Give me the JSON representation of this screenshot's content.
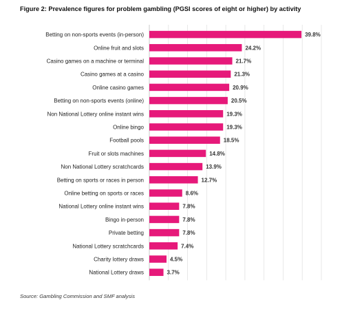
{
  "chart_data": {
    "type": "bar",
    "orientation": "horizontal",
    "title": "Figure 2: Prevalence figures for problem gambling (PGSI scores of eight or higher) by activity",
    "categories": [
      "Betting on non-sports events (in-person)",
      "Online fruit and slots",
      "Casino games on a machine or terminal",
      "Casino games at a casino",
      "Online casino games",
      "Betting on non-sports events (online)",
      "Non National Lottery online instant wins",
      "Online bingo",
      "Football pools",
      "Fruit or slots machines",
      "Non National Lottery scratchcards",
      "Betting on sports or races in person",
      "Online betting on sports or races",
      "National Lottery online instant wins",
      "Bingo in-person",
      "Private betting",
      "National Lottery scratchcards",
      "Charity lottery draws",
      "National Lottery draws"
    ],
    "values": [
      39.8,
      24.2,
      21.7,
      21.3,
      20.9,
      20.5,
      19.3,
      19.3,
      18.5,
      14.8,
      13.9,
      12.7,
      8.6,
      7.8,
      7.8,
      7.8,
      7.4,
      4.5,
      3.7
    ],
    "value_labels": [
      "39.8%",
      "24.2%",
      "21.7%",
      "21.3%",
      "20.9%",
      "20.5%",
      "19.3%",
      "19.3%",
      "18.5%",
      "14.8%",
      "13.9%",
      "12.7%",
      "8.6%",
      "7.8%",
      "7.8%",
      "7.8%",
      "7.4%",
      "4.5%",
      "3.7%"
    ],
    "xlim": [
      0,
      45
    ],
    "grid": true,
    "bar_color": "#e6197a",
    "grid_color": "#e2e2e2"
  },
  "source": "Source: Gambling Commission and SMF analysis"
}
